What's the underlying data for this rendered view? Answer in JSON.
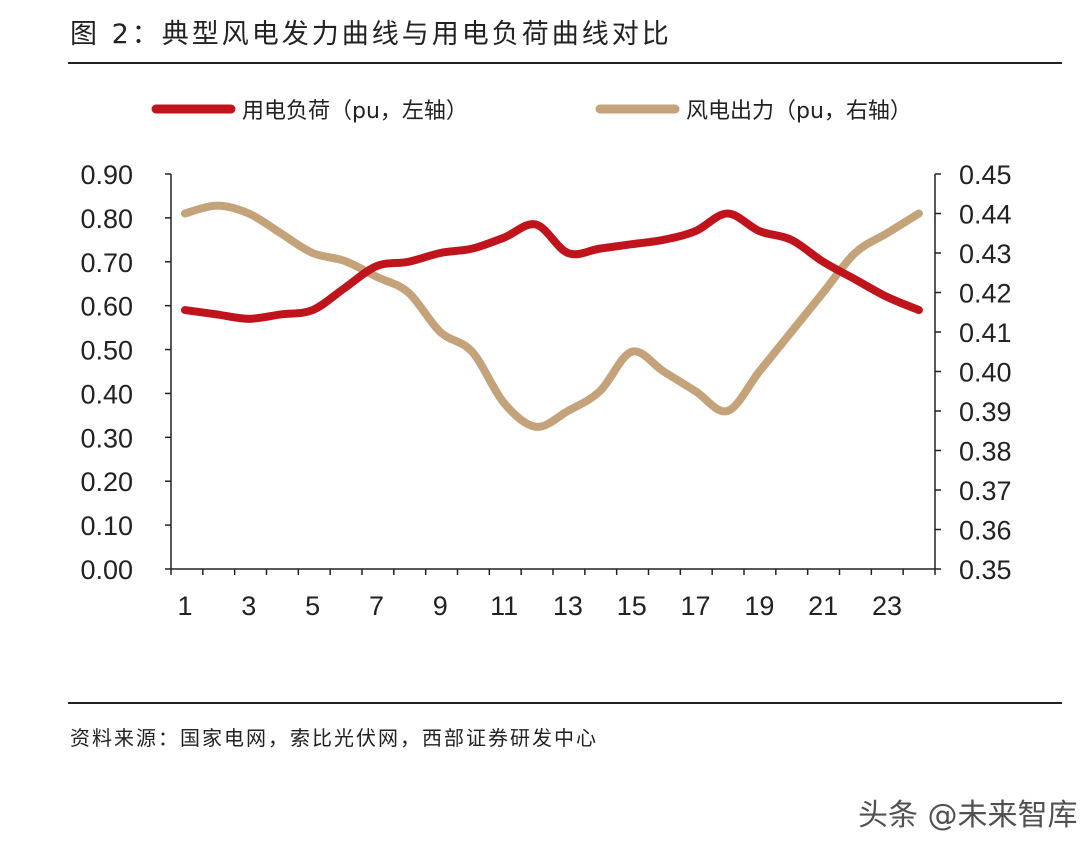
{
  "title": "图 2：典型风电发力曲线与用电负荷曲线对比",
  "source": "资料来源：国家电网，索比光伏网，西部证券研发中心",
  "watermark": "头条 @未来智库",
  "chart_data": {
    "type": "line",
    "title": "图 2：典型风电发力曲线与用电负荷曲线对比",
    "x": [
      1,
      2,
      3,
      4,
      5,
      6,
      7,
      8,
      9,
      10,
      11,
      12,
      13,
      14,
      15,
      16,
      17,
      18,
      19,
      20,
      21,
      22,
      23,
      24
    ],
    "x_tick_labels": [
      "1",
      "3",
      "5",
      "7",
      "9",
      "11",
      "13",
      "15",
      "17",
      "19",
      "21",
      "23"
    ],
    "y_left_ticks": [
      "0.00",
      "0.10",
      "0.20",
      "0.30",
      "0.40",
      "0.50",
      "0.60",
      "0.70",
      "0.80",
      "0.90"
    ],
    "y_right_ticks": [
      "0.35",
      "0.36",
      "0.37",
      "0.38",
      "0.39",
      "0.40",
      "0.41",
      "0.42",
      "0.43",
      "0.44",
      "0.45"
    ],
    "ylim_left": [
      0,
      0.9
    ],
    "ylim_right": [
      0.35,
      0.45
    ],
    "legend_position": "top",
    "series": [
      {
        "name": "用电负荷（pu，左轴）",
        "axis": "left",
        "color": "#c0141c",
        "values": [
          0.59,
          0.58,
          0.57,
          0.58,
          0.59,
          0.64,
          0.69,
          0.7,
          0.72,
          0.73,
          0.755,
          0.785,
          0.72,
          0.73,
          0.74,
          0.75,
          0.77,
          0.81,
          0.77,
          0.75,
          0.7,
          0.66,
          0.62,
          0.59
        ]
      },
      {
        "name": "风电出力（pu，右轴）",
        "axis": "right",
        "color": "#c4a27a",
        "values": [
          0.44,
          0.442,
          0.44,
          0.435,
          0.43,
          0.428,
          0.424,
          0.42,
          0.41,
          0.405,
          0.392,
          0.386,
          0.39,
          0.395,
          0.405,
          0.4,
          0.395,
          0.39,
          0.4,
          0.41,
          0.42,
          0.43,
          0.435,
          0.44
        ]
      }
    ]
  }
}
